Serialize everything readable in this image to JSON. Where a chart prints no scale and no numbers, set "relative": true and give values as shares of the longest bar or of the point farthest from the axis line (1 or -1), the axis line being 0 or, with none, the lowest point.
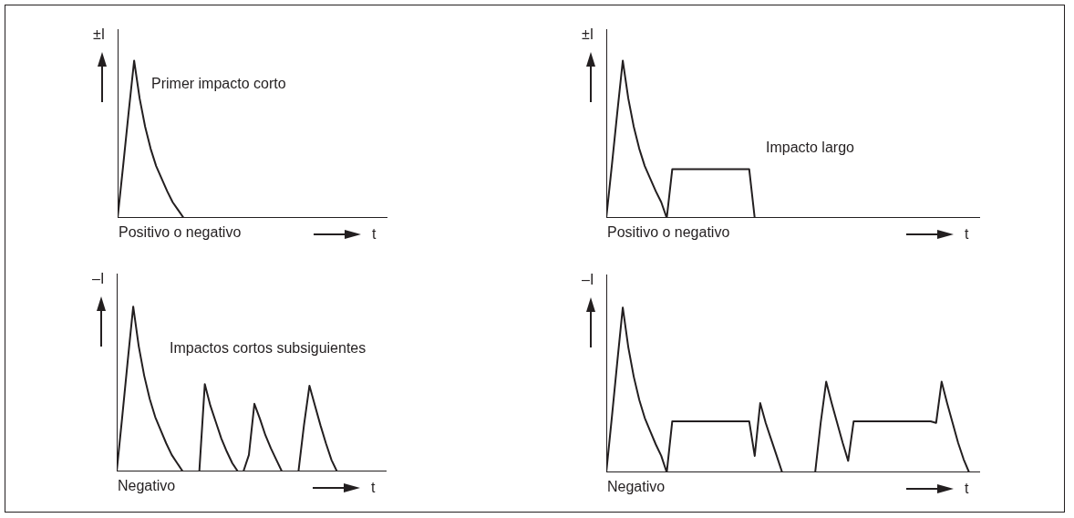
{
  "chart_data": [
    {
      "type": "line",
      "relative": true,
      "ylabel": "±I",
      "xlabel": "t",
      "annotations": [
        "Positivo o negativo",
        "Primer impacto corto"
      ],
      "color": "#231f20",
      "tick_labels": false,
      "categories": [
        null,
        null,
        null,
        null,
        null,
        null,
        null,
        null,
        null,
        null,
        null,
        null,
        null,
        null,
        null,
        null,
        null,
        null,
        null,
        null,
        null,
        null,
        null,
        null,
        null,
        null,
        null,
        null,
        null,
        null,
        null,
        null,
        null,
        null,
        null,
        null,
        null,
        null,
        null,
        null,
        null,
        null,
        null,
        null,
        null,
        null,
        null,
        null,
        null,
        null
      ],
      "values": [
        0,
        0.33,
        0.67,
        1,
        0.76,
        0.58,
        0.44,
        0.33,
        0.25,
        0.17,
        0.1,
        0.05,
        0,
        0,
        0,
        0,
        0,
        0,
        0,
        0,
        0,
        0,
        0,
        0,
        0,
        0,
        0,
        0,
        0,
        0,
        0,
        0,
        0,
        0,
        0,
        0,
        0,
        0,
        0,
        0,
        0,
        0,
        0,
        0,
        0,
        0,
        0,
        0,
        0,
        0
      ]
    },
    {
      "type": "line",
      "relative": true,
      "ylabel": "±I",
      "xlabel": "t",
      "annotations": [
        "Positivo o negativo",
        "Impacto largo"
      ],
      "color": "#231f20",
      "tick_labels": false,
      "categories": [
        null,
        null,
        null,
        null,
        null,
        null,
        null,
        null,
        null,
        null,
        null,
        null,
        null,
        null,
        null,
        null,
        null,
        null,
        null,
        null,
        null,
        null,
        null,
        null,
        null,
        null,
        null,
        null,
        null,
        null,
        null,
        null,
        null,
        null,
        null,
        null,
        null,
        null,
        null,
        null,
        null,
        null,
        null,
        null,
        null,
        null,
        null,
        null,
        null,
        null,
        null,
        null,
        null,
        null,
        null,
        null,
        null,
        null,
        null,
        null,
        null,
        null,
        null,
        null,
        null,
        null,
        null,
        null,
        null
      ],
      "values": [
        0,
        0.33,
        0.67,
        1,
        0.76,
        0.58,
        0.44,
        0.33,
        0.25,
        0.17,
        0.1,
        0,
        0.31,
        0.31,
        0.31,
        0.31,
        0.31,
        0.31,
        0.31,
        0.31,
        0.31,
        0.31,
        0.31,
        0.31,
        0.31,
        0.31,
        0.31,
        0,
        0,
        0,
        0,
        0,
        0,
        0,
        0,
        0,
        0,
        0,
        0,
        0,
        0,
        0,
        0,
        0,
        0,
        0,
        0,
        0,
        0,
        0,
        0,
        0,
        0,
        0,
        0,
        0,
        0,
        0,
        0,
        0,
        0,
        0,
        0,
        0,
        0,
        0,
        0,
        0,
        0
      ]
    },
    {
      "type": "line",
      "relative": true,
      "ylabel": "–I",
      "xlabel": "t",
      "annotations": [
        "Negativo",
        "Impactos cortos subsiguientes"
      ],
      "color": "#231f20",
      "tick_labels": false,
      "categories": [
        null,
        null,
        null,
        null,
        null,
        null,
        null,
        null,
        null,
        null,
        null,
        null,
        null,
        null,
        null,
        null,
        null,
        null,
        null,
        null,
        null,
        null,
        null,
        null,
        null,
        null,
        null,
        null,
        null,
        null,
        null,
        null,
        null,
        null,
        null,
        null,
        null,
        null,
        null,
        null,
        null,
        null,
        null,
        null,
        null,
        null,
        null,
        null,
        null,
        null
      ],
      "values": [
        0,
        0.33,
        0.67,
        1,
        0.76,
        0.58,
        0.44,
        0.33,
        0.25,
        0.17,
        0.1,
        0.05,
        0,
        0,
        0,
        0,
        0.53,
        0.4,
        0.3,
        0.2,
        0.12,
        0.05,
        0,
        0,
        0.1,
        0.41,
        0.32,
        0.22,
        0.14,
        0.07,
        0,
        0,
        0,
        0,
        0.28,
        0.52,
        0.4,
        0.28,
        0.17,
        0.07,
        0,
        0,
        0,
        0,
        0,
        0,
        0,
        0,
        0,
        0
      ]
    },
    {
      "type": "line",
      "relative": true,
      "ylabel": "–I",
      "xlabel": "t",
      "annotations": [
        "Negativo"
      ],
      "color": "#231f20",
      "tick_labels": false,
      "categories": [
        null,
        null,
        null,
        null,
        null,
        null,
        null,
        null,
        null,
        null,
        null,
        null,
        null,
        null,
        null,
        null,
        null,
        null,
        null,
        null,
        null,
        null,
        null,
        null,
        null,
        null,
        null,
        null,
        null,
        null,
        null,
        null,
        null,
        null,
        null,
        null,
        null,
        null,
        null,
        null,
        null,
        null,
        null,
        null,
        null,
        null,
        null,
        null,
        null,
        null,
        null,
        null,
        null,
        null,
        null,
        null,
        null,
        null,
        null,
        null,
        null,
        null,
        null,
        null,
        null,
        null,
        null,
        null,
        null
      ],
      "values": [
        0,
        0.33,
        0.67,
        1,
        0.76,
        0.58,
        0.44,
        0.33,
        0.25,
        0.17,
        0.1,
        0,
        0.31,
        0.31,
        0.31,
        0.31,
        0.31,
        0.31,
        0.31,
        0.31,
        0.31,
        0.31,
        0.31,
        0.31,
        0.31,
        0.31,
        0.31,
        0.1,
        0.42,
        0.3,
        0.2,
        0.1,
        0,
        0,
        0,
        0,
        0,
        0,
        0,
        0.3,
        0.55,
        0.42,
        0.3,
        0.18,
        0.07,
        0.31,
        0.31,
        0.31,
        0.31,
        0.31,
        0.31,
        0.31,
        0.31,
        0.31,
        0.31,
        0.31,
        0.31,
        0.31,
        0.31,
        0.31,
        0.3,
        0.55,
        0.42,
        0.3,
        0.18,
        0.08,
        0,
        0,
        0
      ]
    }
  ]
}
